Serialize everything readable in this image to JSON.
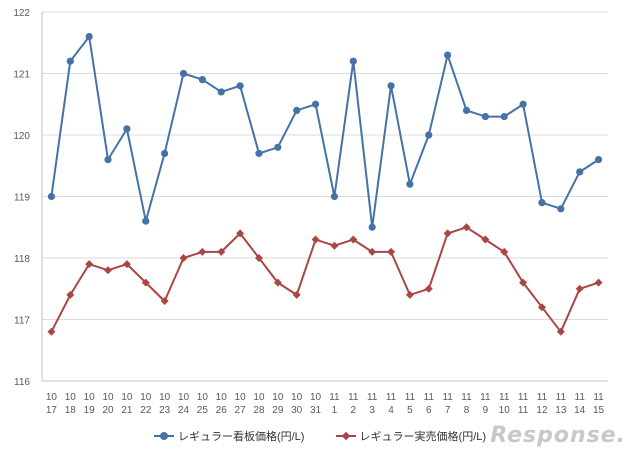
{
  "chart_data": {
    "type": "line",
    "title": "",
    "xlabel": "",
    "ylabel": "",
    "ylim": [
      116,
      122
    ],
    "yticks": [
      116,
      117,
      118,
      119,
      120,
      121,
      122
    ],
    "grid": "horizontal",
    "legend_position": "bottom",
    "categories": [
      [
        "10",
        "17"
      ],
      [
        "10",
        "18"
      ],
      [
        "10",
        "19"
      ],
      [
        "10",
        "20"
      ],
      [
        "10",
        "21"
      ],
      [
        "10",
        "22"
      ],
      [
        "10",
        "23"
      ],
      [
        "10",
        "24"
      ],
      [
        "10",
        "25"
      ],
      [
        "10",
        "26"
      ],
      [
        "10",
        "27"
      ],
      [
        "10",
        "28"
      ],
      [
        "10",
        "29"
      ],
      [
        "10",
        "30"
      ],
      [
        "10",
        "31"
      ],
      [
        "11",
        "1"
      ],
      [
        "11",
        "2"
      ],
      [
        "11",
        "3"
      ],
      [
        "11",
        "4"
      ],
      [
        "11",
        "5"
      ],
      [
        "11",
        "6"
      ],
      [
        "11",
        "7"
      ],
      [
        "11",
        "8"
      ],
      [
        "11",
        "9"
      ],
      [
        "11",
        "10"
      ],
      [
        "11",
        "11"
      ],
      [
        "11",
        "12"
      ],
      [
        "11",
        "13"
      ],
      [
        "11",
        "14"
      ],
      [
        "11",
        "15"
      ]
    ],
    "series": [
      {
        "name": "レギュラー看板価格(円/L)",
        "color": "#4572a7",
        "marker": "circle",
        "values": [
          119.0,
          121.2,
          121.6,
          119.6,
          120.1,
          118.6,
          119.7,
          121.0,
          120.9,
          120.7,
          120.8,
          119.7,
          119.8,
          120.4,
          120.5,
          119.0,
          121.2,
          118.5,
          120.8,
          119.2,
          120.0,
          121.3,
          120.4,
          120.3,
          120.3,
          120.5,
          118.9,
          118.8,
          119.4,
          119.6
        ]
      },
      {
        "name": "レギュラー実売価格(円/L)",
        "color": "#aa4643",
        "marker": "diamond",
        "values": [
          116.8,
          117.4,
          117.9,
          117.8,
          117.9,
          117.6,
          117.3,
          118.0,
          118.1,
          118.1,
          118.4,
          118.0,
          117.6,
          117.4,
          118.3,
          118.2,
          118.3,
          118.1,
          118.1,
          117.4,
          117.5,
          118.4,
          118.5,
          118.3,
          118.1,
          117.6,
          117.2,
          116.8,
          117.5,
          117.6
        ]
      }
    ]
  },
  "watermark": "Response."
}
